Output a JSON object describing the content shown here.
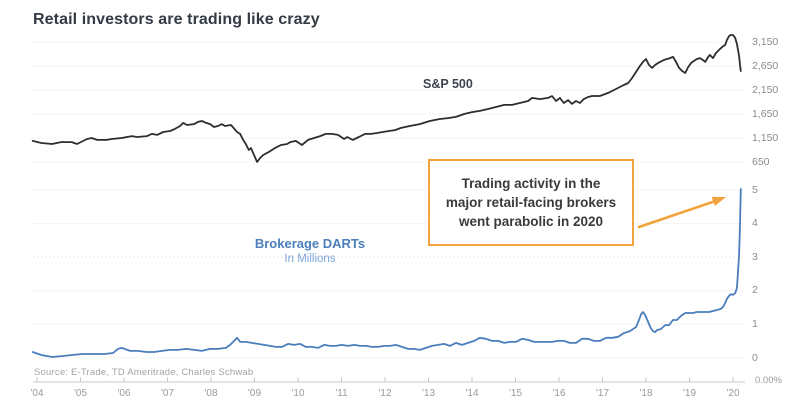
{
  "title": "Retail investors are trading like crazy",
  "series_labels": {
    "sp500": "S&P 500",
    "darts_line1": "Brokerage DARTs",
    "darts_line2": "In Millions"
  },
  "annotation": {
    "lines": [
      "Trading activity in the",
      "major retail-facing brokers",
      "went parabolic in 2020"
    ]
  },
  "source": "Source: E-Trade, TD Ameritrade, Charles Schwab",
  "axis": {
    "secondary_label": "0.00%"
  },
  "colors": {
    "sp500_line": "#2d2d2d",
    "darts_line": "#4a7ebc",
    "accent_orange": "#f2a33c",
    "title_text": "#333b45",
    "axis_text": "#8c8c8c"
  },
  "chart_data": {
    "type": "line",
    "title": "Retail investors are trading like crazy",
    "x_axis": {
      "labels": [
        "'04",
        "'05",
        "'06",
        "'07",
        "'08",
        "'09",
        "'10",
        "'11",
        "'12",
        "'13",
        "'14",
        "'15",
        "'16",
        "'17",
        "'18",
        "'19",
        "'20"
      ],
      "years": [
        2004,
        2005,
        2006,
        2007,
        2008,
        2009,
        2010,
        2011,
        2012,
        2013,
        2014,
        2015,
        2016,
        2017,
        2018,
        2019,
        2020
      ],
      "range": [
        2004,
        2020.2
      ]
    },
    "y_axis_sp500": {
      "ticks": [
        650,
        1150,
        1650,
        2150,
        2650,
        3150
      ],
      "labels": [
        "650",
        "1,150",
        "1,650",
        "2,150",
        "2,650",
        "3,150"
      ],
      "range": [
        650,
        3150
      ],
      "position": "right",
      "grid": true
    },
    "y_axis_darts": {
      "ticks": [
        0,
        1,
        2,
        3,
        4,
        5
      ],
      "labels": [
        "0",
        "1",
        "2",
        "3",
        "4",
        "5"
      ],
      "range": [
        0,
        5
      ],
      "position": "right",
      "grid": true
    },
    "legend_position": "inline-labels",
    "series": [
      {
        "name": "S&P 500",
        "axis": "sp500",
        "color": "#2d2d2d",
        "points": [
          [
            2003.9,
            1090
          ],
          [
            2004.1,
            1045
          ],
          [
            2004.35,
            1025
          ],
          [
            2004.55,
            1065
          ],
          [
            2004.8,
            1065
          ],
          [
            2004.92,
            1025
          ],
          [
            2005.15,
            1130
          ],
          [
            2005.26,
            1150
          ],
          [
            2005.38,
            1110
          ],
          [
            2005.6,
            1110
          ],
          [
            2005.72,
            1130
          ],
          [
            2005.95,
            1150
          ],
          [
            2006.18,
            1190
          ],
          [
            2006.3,
            1170
          ],
          [
            2006.53,
            1190
          ],
          [
            2006.64,
            1235
          ],
          [
            2006.76,
            1215
          ],
          [
            2006.9,
            1275
          ],
          [
            2007.06,
            1295
          ],
          [
            2007.17,
            1340
          ],
          [
            2007.29,
            1400
          ],
          [
            2007.36,
            1465
          ],
          [
            2007.45,
            1420
          ],
          [
            2007.61,
            1440
          ],
          [
            2007.7,
            1485
          ],
          [
            2007.79,
            1505
          ],
          [
            2007.89,
            1465
          ],
          [
            2007.98,
            1440
          ],
          [
            2008.07,
            1380
          ],
          [
            2008.16,
            1400
          ],
          [
            2008.25,
            1440
          ],
          [
            2008.32,
            1400
          ],
          [
            2008.46,
            1420
          ],
          [
            2008.6,
            1275
          ],
          [
            2008.67,
            1235
          ],
          [
            2008.74,
            1110
          ],
          [
            2008.8,
            1025
          ],
          [
            2008.87,
            900
          ],
          [
            2008.92,
            940
          ],
          [
            2009.01,
            755
          ],
          [
            2009.06,
            650
          ],
          [
            2009.13,
            735
          ],
          [
            2009.2,
            795
          ],
          [
            2009.33,
            860
          ],
          [
            2009.47,
            940
          ],
          [
            2009.61,
            1005
          ],
          [
            2009.75,
            1025
          ],
          [
            2009.82,
            1065
          ],
          [
            2009.95,
            1090
          ],
          [
            2010.09,
            1005
          ],
          [
            2010.23,
            1110
          ],
          [
            2010.37,
            1150
          ],
          [
            2010.51,
            1190
          ],
          [
            2010.64,
            1235
          ],
          [
            2010.78,
            1235
          ],
          [
            2010.92,
            1215
          ],
          [
            2011.06,
            1130
          ],
          [
            2011.13,
            1170
          ],
          [
            2011.26,
            1110
          ],
          [
            2011.4,
            1170
          ],
          [
            2011.54,
            1235
          ],
          [
            2011.68,
            1235
          ],
          [
            2011.82,
            1255
          ],
          [
            2011.95,
            1275
          ],
          [
            2012.09,
            1295
          ],
          [
            2012.23,
            1315
          ],
          [
            2012.37,
            1360
          ],
          [
            2012.57,
            1400
          ],
          [
            2012.8,
            1440
          ],
          [
            2013.03,
            1505
          ],
          [
            2013.26,
            1545
          ],
          [
            2013.45,
            1565
          ],
          [
            2013.63,
            1590
          ],
          [
            2013.82,
            1650
          ],
          [
            2014.0,
            1690
          ],
          [
            2014.18,
            1715
          ],
          [
            2014.37,
            1755
          ],
          [
            2014.55,
            1795
          ],
          [
            2014.74,
            1840
          ],
          [
            2014.92,
            1840
          ],
          [
            2015.1,
            1880
          ],
          [
            2015.29,
            1920
          ],
          [
            2015.38,
            1985
          ],
          [
            2015.56,
            1960
          ],
          [
            2015.75,
            1985
          ],
          [
            2015.84,
            2025
          ],
          [
            2015.93,
            1920
          ],
          [
            2016.02,
            1985
          ],
          [
            2016.11,
            1880
          ],
          [
            2016.21,
            1940
          ],
          [
            2016.3,
            1860
          ],
          [
            2016.39,
            1920
          ],
          [
            2016.48,
            1880
          ],
          [
            2016.57,
            1960
          ],
          [
            2016.67,
            2005
          ],
          [
            2016.76,
            2025
          ],
          [
            2016.94,
            2025
          ],
          [
            2017.13,
            2090
          ],
          [
            2017.31,
            2170
          ],
          [
            2017.49,
            2255
          ],
          [
            2017.59,
            2295
          ],
          [
            2017.68,
            2400
          ],
          [
            2017.77,
            2525
          ],
          [
            2017.86,
            2650
          ],
          [
            2017.93,
            2735
          ],
          [
            2018.0,
            2795
          ],
          [
            2018.07,
            2670
          ],
          [
            2018.14,
            2610
          ],
          [
            2018.21,
            2670
          ],
          [
            2018.28,
            2715
          ],
          [
            2018.41,
            2775
          ],
          [
            2018.55,
            2815
          ],
          [
            2018.62,
            2840
          ],
          [
            2018.69,
            2735
          ],
          [
            2018.76,
            2610
          ],
          [
            2018.83,
            2545
          ],
          [
            2018.9,
            2505
          ],
          [
            2018.97,
            2630
          ],
          [
            2019.04,
            2715
          ],
          [
            2019.1,
            2755
          ],
          [
            2019.17,
            2795
          ],
          [
            2019.24,
            2815
          ],
          [
            2019.31,
            2775
          ],
          [
            2019.36,
            2735
          ],
          [
            2019.43,
            2840
          ],
          [
            2019.47,
            2880
          ],
          [
            2019.54,
            2815
          ],
          [
            2019.61,
            2920
          ],
          [
            2019.68,
            2985
          ],
          [
            2019.75,
            3045
          ],
          [
            2019.82,
            3090
          ],
          [
            2019.86,
            3190
          ],
          [
            2019.91,
            3275
          ],
          [
            2019.95,
            3295
          ],
          [
            2020.0,
            3295
          ],
          [
            2020.05,
            3235
          ],
          [
            2020.09,
            3110
          ],
          [
            2020.14,
            2860
          ],
          [
            2020.16,
            2670
          ],
          [
            2020.18,
            2545
          ]
        ]
      },
      {
        "name": "Brokerage DARTs",
        "axis": "darts",
        "color": "#4a7ebc",
        "points": [
          [
            2003.9,
            0.18
          ],
          [
            2004.1,
            0.09
          ],
          [
            2004.35,
            0.03
          ],
          [
            2004.6,
            0.06
          ],
          [
            2004.8,
            0.09
          ],
          [
            2005.05,
            0.12
          ],
          [
            2005.3,
            0.12
          ],
          [
            2005.55,
            0.12
          ],
          [
            2005.75,
            0.15
          ],
          [
            2005.86,
            0.27
          ],
          [
            2005.95,
            0.3
          ],
          [
            2006.14,
            0.21
          ],
          [
            2006.32,
            0.21
          ],
          [
            2006.51,
            0.18
          ],
          [
            2006.69,
            0.18
          ],
          [
            2006.87,
            0.21
          ],
          [
            2007.06,
            0.24
          ],
          [
            2007.24,
            0.24
          ],
          [
            2007.43,
            0.27
          ],
          [
            2007.61,
            0.24
          ],
          [
            2007.79,
            0.21
          ],
          [
            2007.98,
            0.27
          ],
          [
            2008.16,
            0.27
          ],
          [
            2008.34,
            0.3
          ],
          [
            2008.44,
            0.39
          ],
          [
            2008.53,
            0.51
          ],
          [
            2008.6,
            0.6
          ],
          [
            2008.67,
            0.48
          ],
          [
            2008.8,
            0.48
          ],
          [
            2008.94,
            0.45
          ],
          [
            2009.08,
            0.42
          ],
          [
            2009.22,
            0.39
          ],
          [
            2009.36,
            0.36
          ],
          [
            2009.49,
            0.33
          ],
          [
            2009.63,
            0.33
          ],
          [
            2009.77,
            0.42
          ],
          [
            2009.91,
            0.39
          ],
          [
            2010.05,
            0.42
          ],
          [
            2010.18,
            0.33
          ],
          [
            2010.32,
            0.33
          ],
          [
            2010.46,
            0.3
          ],
          [
            2010.6,
            0.39
          ],
          [
            2010.74,
            0.36
          ],
          [
            2010.87,
            0.36
          ],
          [
            2011.01,
            0.39
          ],
          [
            2011.15,
            0.36
          ],
          [
            2011.29,
            0.39
          ],
          [
            2011.43,
            0.36
          ],
          [
            2011.56,
            0.36
          ],
          [
            2011.7,
            0.33
          ],
          [
            2011.84,
            0.33
          ],
          [
            2011.98,
            0.36
          ],
          [
            2012.11,
            0.36
          ],
          [
            2012.25,
            0.39
          ],
          [
            2012.39,
            0.33
          ],
          [
            2012.53,
            0.27
          ],
          [
            2012.67,
            0.27
          ],
          [
            2012.8,
            0.24
          ],
          [
            2012.94,
            0.3
          ],
          [
            2013.08,
            0.36
          ],
          [
            2013.22,
            0.39
          ],
          [
            2013.36,
            0.42
          ],
          [
            2013.49,
            0.36
          ],
          [
            2013.63,
            0.45
          ],
          [
            2013.77,
            0.39
          ],
          [
            2013.91,
            0.45
          ],
          [
            2014.05,
            0.51
          ],
          [
            2014.18,
            0.6
          ],
          [
            2014.32,
            0.57
          ],
          [
            2014.46,
            0.51
          ],
          [
            2014.6,
            0.51
          ],
          [
            2014.74,
            0.45
          ],
          [
            2014.87,
            0.48
          ],
          [
            2015.01,
            0.48
          ],
          [
            2015.15,
            0.57
          ],
          [
            2015.29,
            0.54
          ],
          [
            2015.43,
            0.48
          ],
          [
            2015.56,
            0.48
          ],
          [
            2015.7,
            0.48
          ],
          [
            2015.84,
            0.48
          ],
          [
            2015.98,
            0.51
          ],
          [
            2016.11,
            0.51
          ],
          [
            2016.25,
            0.45
          ],
          [
            2016.39,
            0.45
          ],
          [
            2016.53,
            0.57
          ],
          [
            2016.67,
            0.57
          ],
          [
            2016.8,
            0.51
          ],
          [
            2016.94,
            0.51
          ],
          [
            2017.08,
            0.6
          ],
          [
            2017.22,
            0.6
          ],
          [
            2017.36,
            0.63
          ],
          [
            2017.49,
            0.74
          ],
          [
            2017.63,
            0.8
          ],
          [
            2017.77,
            0.92
          ],
          [
            2017.84,
            1.13
          ],
          [
            2017.89,
            1.31
          ],
          [
            2017.93,
            1.37
          ],
          [
            2017.98,
            1.28
          ],
          [
            2018.02,
            1.16
          ],
          [
            2018.07,
            1.01
          ],
          [
            2018.11,
            0.89
          ],
          [
            2018.16,
            0.8
          ],
          [
            2018.21,
            0.77
          ],
          [
            2018.25,
            0.83
          ],
          [
            2018.34,
            0.86
          ],
          [
            2018.44,
            0.98
          ],
          [
            2018.53,
            0.98
          ],
          [
            2018.62,
            1.13
          ],
          [
            2018.71,
            1.13
          ],
          [
            2018.8,
            1.25
          ],
          [
            2018.9,
            1.34
          ],
          [
            2018.99,
            1.34
          ],
          [
            2019.08,
            1.34
          ],
          [
            2019.17,
            1.37
          ],
          [
            2019.26,
            1.37
          ],
          [
            2019.36,
            1.37
          ],
          [
            2019.45,
            1.37
          ],
          [
            2019.54,
            1.4
          ],
          [
            2019.63,
            1.43
          ],
          [
            2019.72,
            1.46
          ],
          [
            2019.77,
            1.52
          ],
          [
            2019.82,
            1.64
          ],
          [
            2019.86,
            1.76
          ],
          [
            2019.91,
            1.85
          ],
          [
            2019.95,
            1.9
          ],
          [
            2020.0,
            1.88
          ],
          [
            2020.05,
            1.93
          ],
          [
            2020.09,
            2.08
          ],
          [
            2020.11,
            2.47
          ],
          [
            2020.14,
            3.07
          ],
          [
            2020.16,
            3.96
          ],
          [
            2020.18,
            5.03
          ]
        ]
      }
    ]
  }
}
